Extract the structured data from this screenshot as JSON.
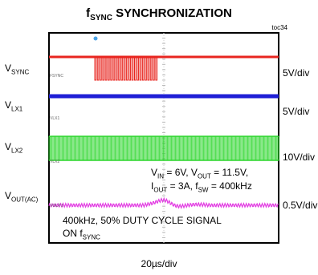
{
  "title": {
    "main": "f",
    "sub": "SYNC",
    "rest": " SYNCHRONIZATION"
  },
  "figure_id": "toc34",
  "colors": {
    "vsync": "#e8251f",
    "vlx1": "#1f1fd6",
    "vlx2": "#2bd62b",
    "vout": "#e23be2"
  },
  "chart_data": {
    "type": "line",
    "title": "fSYNC SYNCHRONIZATION",
    "xlabel": "20µs/div",
    "ylabel": "",
    "time_per_div": "20µs/div",
    "grid": true,
    "series": [
      {
        "name": "VSYNC",
        "scale": "5V/div",
        "trace_label": "VSYNC"
      },
      {
        "name": "VLX1",
        "scale": "5V/div",
        "trace_label": "VLX1"
      },
      {
        "name": "VLX2",
        "scale": "10V/div",
        "trace_label": "VLX2"
      },
      {
        "name": "VOUT(AC)",
        "scale": "0.5V/div",
        "trace_label": "VOUT1"
      }
    ],
    "annotations": [
      "VIN = 6V, VOUT = 11.5V,",
      "IOUT = 3A, fSW = 400kHz",
      "400kHz, 50% DUTY CYCLE SIGNAL",
      "ON fSYNC"
    ]
  },
  "labels": {
    "vsync": {
      "main": "V",
      "sub": "SYNC"
    },
    "vlx1": {
      "main": "V",
      "sub": "LX1"
    },
    "vlx2": {
      "main": "V",
      "sub": "LX2"
    },
    "vout": {
      "main": "V",
      "sub": "OUT(AC)"
    }
  },
  "scales": {
    "vsync": "5V/div",
    "vlx1": "5V/div",
    "vlx2": "10V/div",
    "vout": "0.5V/div"
  },
  "trace_tags": {
    "vsync": "FSYNC",
    "vlx1": "VLX1",
    "vlx2": "VLX2",
    "vout": "VOUT1"
  },
  "conditions": {
    "l1_a": "V",
    "l1_a_sub": "IN",
    "l1_b": " = 6V, V",
    "l1_b_sub": "OUT",
    "l1_c": " = 11.5V,",
    "l2_a": "I",
    "l2_a_sub": "OUT",
    "l2_b": " = 3A, f",
    "l2_b_sub": "SW",
    "l2_c": " = 400kHz"
  },
  "note": {
    "line1": "400kHz, 50% DUTY CYCLE SIGNAL",
    "line2_a": "ON f",
    "line2_sub": "SYNC"
  },
  "timebase": "20µs/div"
}
